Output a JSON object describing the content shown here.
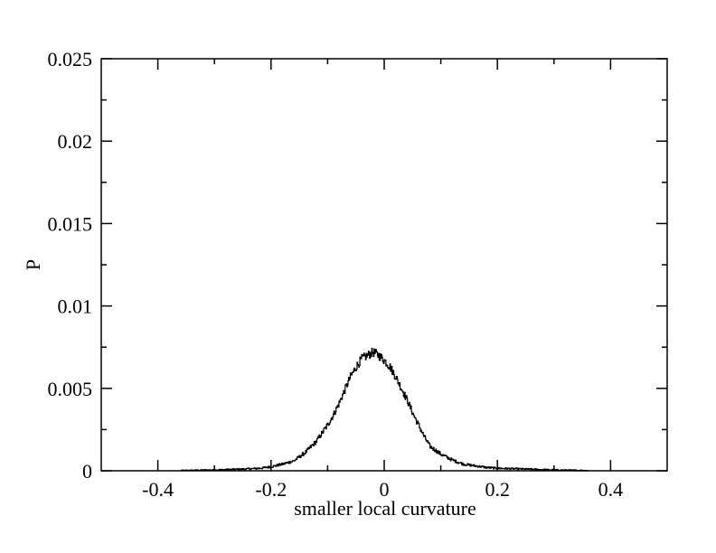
{
  "chart_data": {
    "type": "line",
    "title": "",
    "xlabel": "smaller local curvature",
    "ylabel": "P",
    "xlim": [
      -0.5,
      0.5
    ],
    "ylim": [
      0,
      0.025
    ],
    "x_ticks": [
      -0.4,
      -0.2,
      0,
      0.2,
      0.4
    ],
    "x_tick_labels": [
      "-0.4",
      "-0.2",
      "0",
      "0.2",
      "0.4"
    ],
    "y_ticks": [
      0,
      0.005,
      0.01,
      0.015,
      0.02,
      0.025
    ],
    "y_tick_labels": [
      "0",
      "0.005",
      "0.01",
      "0.015",
      "0.02",
      "0.025"
    ],
    "grid": false,
    "legend": "none",
    "series": [
      {
        "color": "#000000",
        "x": [
          -0.5,
          -0.45,
          -0.4,
          -0.35,
          -0.3,
          -0.25,
          -0.22,
          -0.2,
          -0.18,
          -0.16,
          -0.14,
          -0.12,
          -0.1,
          -0.09,
          -0.08,
          -0.07,
          -0.06,
          -0.05,
          -0.04,
          -0.03,
          -0.02,
          -0.01,
          0,
          0.01,
          0.02,
          0.03,
          0.04,
          0.05,
          0.06,
          0.07,
          0.08,
          0.1,
          0.12,
          0.14,
          0.16,
          0.18,
          0.2,
          0.25,
          0.3,
          0.35,
          0.4,
          0.45,
          0.5
        ],
        "y": [
          0,
          0,
          0,
          2e-05,
          5e-05,
          0.0001,
          0.00015,
          0.00025,
          0.0004,
          0.0006,
          0.0011,
          0.0018,
          0.0028,
          0.0034,
          0.0041,
          0.0049,
          0.0057,
          0.0063,
          0.0068,
          0.007,
          0.0072,
          0.007,
          0.0067,
          0.0063,
          0.0057,
          0.005,
          0.0043,
          0.0035,
          0.0028,
          0.0021,
          0.0015,
          0.001,
          0.00065,
          0.0004,
          0.0003,
          0.0002,
          0.00015,
          0.0001,
          5e-05,
          2e-05,
          0,
          0,
          0
        ]
      }
    ]
  }
}
